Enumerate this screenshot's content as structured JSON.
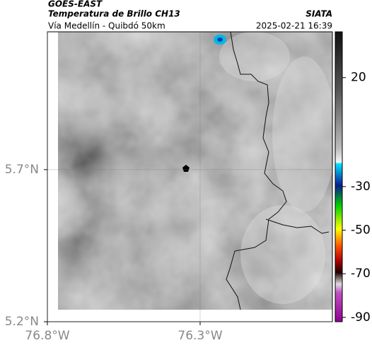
{
  "header": {
    "source": "GOES-EAST",
    "title": "Temperatura de Brillo CH13",
    "subtitle": "Vía Medellín - Quibdó 50km",
    "brand": "SIATA",
    "datetime": "2025-02-21 16:39"
  },
  "map": {
    "lonlim": [
      -76.8,
      -75.867
    ],
    "latlim": [
      5.2,
      6.153
    ],
    "lonticks": [
      {
        "value": -76.8,
        "label": "76.8°W"
      },
      {
        "value": -76.3,
        "label": "76.3°W"
      }
    ],
    "latticks": [
      {
        "value": 5.7,
        "label": "5.7°N"
      },
      {
        "value": 5.2,
        "label": "5.2°N"
      }
    ]
  },
  "colorbar": {
    "lim": [
      -92,
      41
    ],
    "ticks": [
      20,
      -30,
      -50,
      -70,
      -90
    ]
  }
}
